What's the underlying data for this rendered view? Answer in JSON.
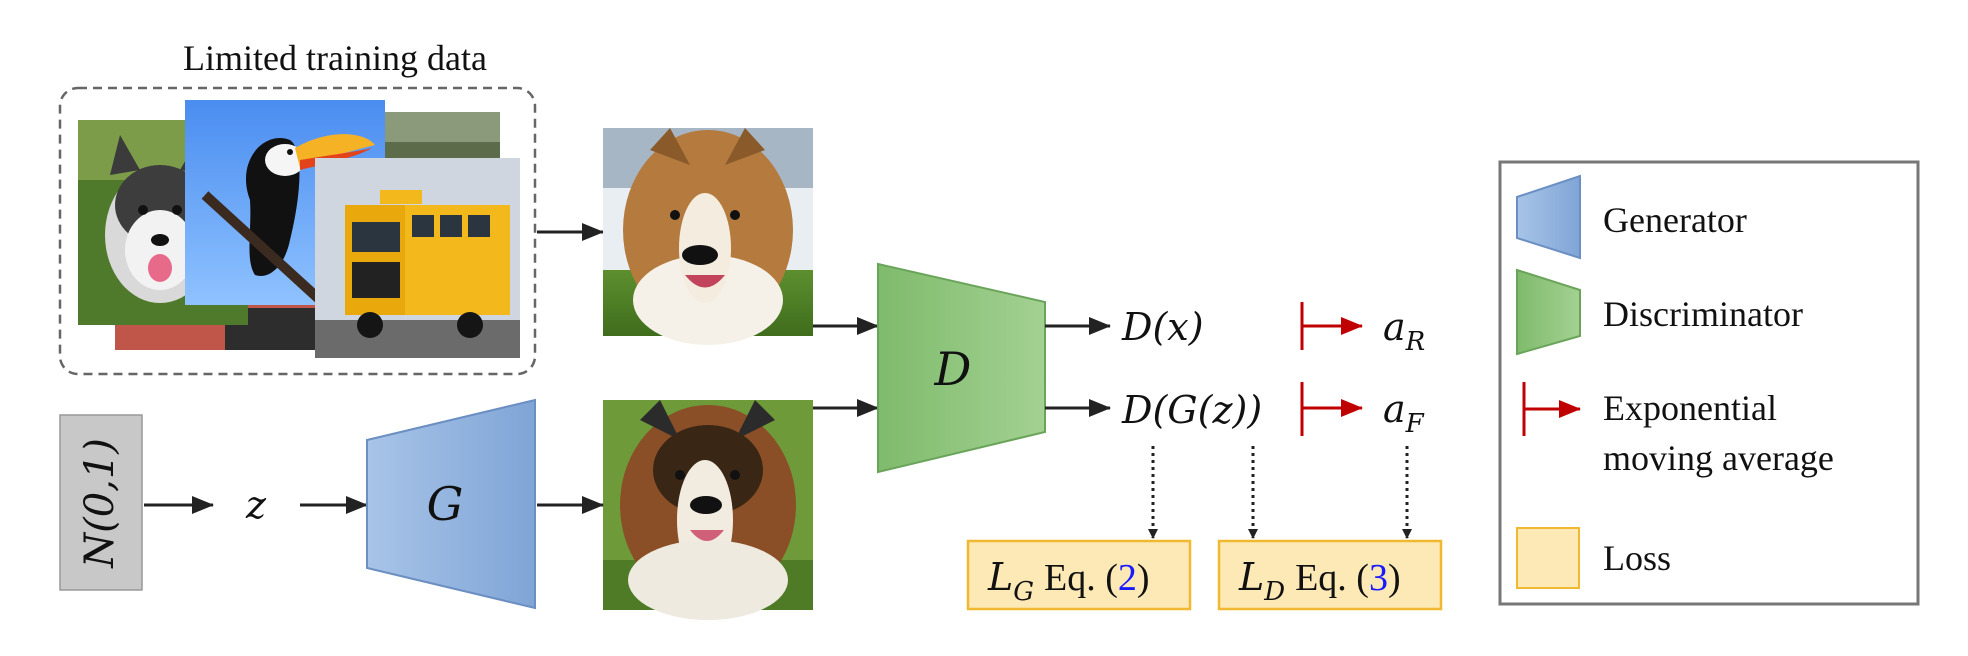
{
  "training": {
    "title": "Limited training data"
  },
  "noise": {
    "label": "N(0,1)"
  },
  "latent": {
    "label": "z"
  },
  "generator": {
    "label": "G"
  },
  "discriminator": {
    "label": "D"
  },
  "outputs": {
    "real_label": "D(x)",
    "fake_label": "D(G(z))",
    "ema_real": {
      "base": "a",
      "sub": "R"
    },
    "ema_fake": {
      "base": "a",
      "sub": "F"
    }
  },
  "losses": {
    "generator": {
      "base": "L",
      "sub": "G",
      "eq_text": "Eq. (",
      "eq_num": "2",
      "close": ")"
    },
    "discriminator": {
      "base": "L",
      "sub": "D",
      "eq_text": "Eq. (",
      "eq_num": "3",
      "close": ")"
    }
  },
  "legend": {
    "generator": "Generator",
    "discriminator": "Discriminator",
    "ema_line1": "Exponential",
    "ema_line2": "moving average",
    "loss": "Loss"
  },
  "colors": {
    "generator_fill": "#8eb1dc",
    "discriminator_fill": "#8cc37c",
    "ema_red": "#c00000",
    "loss_fill": "#fde9b6",
    "loss_border": "#f1b931",
    "noise_fill": "#c8c8c8",
    "link_blue": "#1a1aff"
  },
  "images": {
    "thumbnails": [
      "husky-photo",
      "toucan-photo",
      "school-bus-photo"
    ],
    "real_sample": "collie-real-photo",
    "fake_sample": "collie-generated-photo"
  }
}
